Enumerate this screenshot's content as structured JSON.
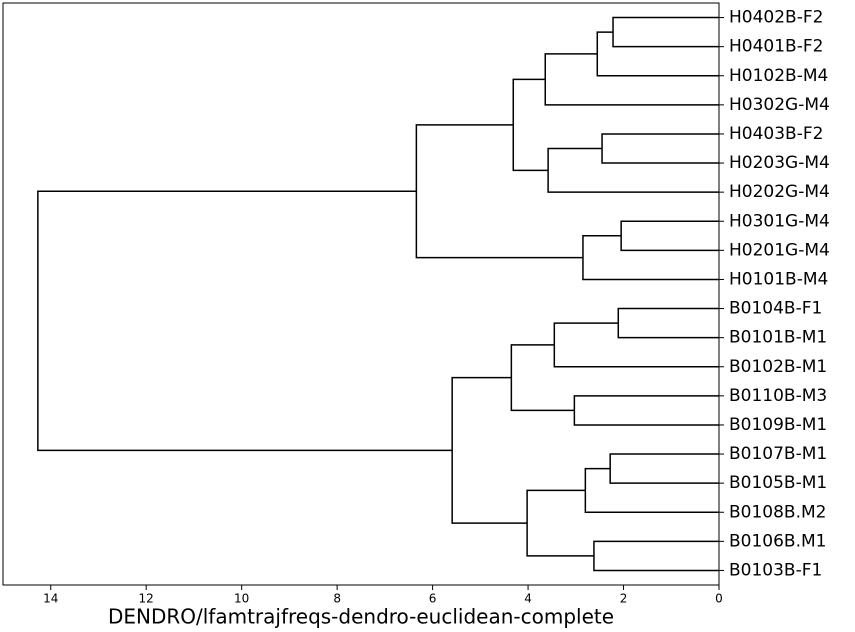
{
  "chart_data": {
    "type": "dendrogram",
    "xlabel": "DENDRO/lfamtrajfreqs-dendro-euclidean-complete",
    "leaves": [
      "H0402B-F2",
      "H0401B-F2",
      "H0102B-M4",
      "H0302G-M4",
      "H0403B-F2",
      "H0203G-M4",
      "H0202G-M4",
      "H0301G-M4",
      "H0201G-M4",
      "H0101B-M4",
      "B0104B-F1",
      "B0101B-M1",
      "B0102B-M1",
      "B0110B-M3",
      "B0109B-M1",
      "B0107B-M1",
      "B0105B-M1",
      "B0108B.M2",
      "B0106B.M1",
      "B0103B-F1"
    ],
    "merges": [
      {
        "children": [
          0,
          1
        ],
        "height": 2.22
      },
      {
        "children": [
          20,
          2
        ],
        "height": 2.55
      },
      {
        "children": [
          21,
          3
        ],
        "height": 3.64
      },
      {
        "children": [
          4,
          5
        ],
        "height": 2.45
      },
      {
        "children": [
          23,
          6
        ],
        "height": 3.58
      },
      {
        "children": [
          22,
          24
        ],
        "height": 4.31
      },
      {
        "children": [
          7,
          8
        ],
        "height": 2.05
      },
      {
        "children": [
          26,
          9
        ],
        "height": 2.85
      },
      {
        "children": [
          25,
          27
        ],
        "height": 6.34
      },
      {
        "children": [
          10,
          11
        ],
        "height": 2.11
      },
      {
        "children": [
          29,
          12
        ],
        "height": 3.45
      },
      {
        "children": [
          13,
          14
        ],
        "height": 3.03
      },
      {
        "children": [
          30,
          31
        ],
        "height": 4.35
      },
      {
        "children": [
          15,
          16
        ],
        "height": 2.28
      },
      {
        "children": [
          33,
          17
        ],
        "height": 2.8
      },
      {
        "children": [
          18,
          19
        ],
        "height": 2.62
      },
      {
        "children": [
          34,
          35
        ],
        "height": 4.02
      },
      {
        "children": [
          32,
          36
        ],
        "height": 5.59
      },
      {
        "children": [
          28,
          37
        ],
        "height": 14.27
      }
    ],
    "color": "#000000",
    "xlim": [
      15,
      0
    ],
    "xticks": [
      14,
      12,
      10,
      8,
      6,
      4,
      2,
      0
    ]
  }
}
